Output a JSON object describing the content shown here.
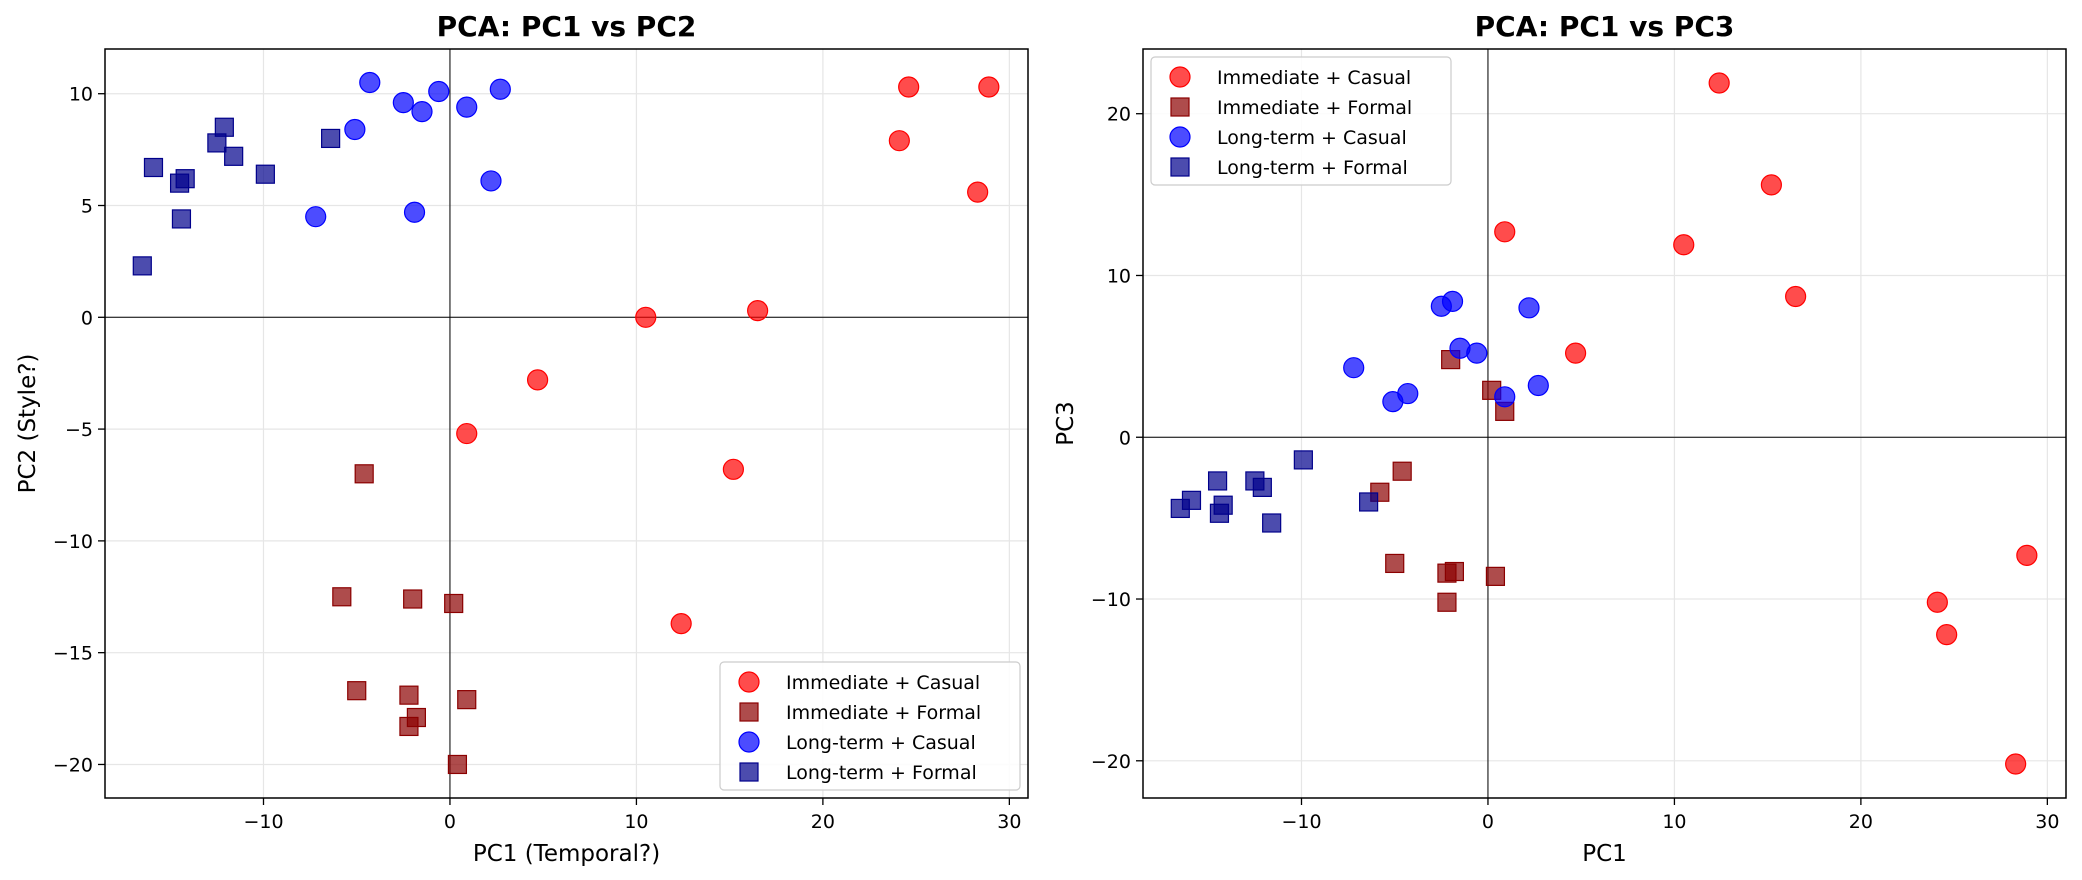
{
  "chart_data": [
    {
      "type": "scatter",
      "title": "PCA: PC1 vs PC2",
      "xlabel": "PC1 (Temporal?)",
      "ylabel": "PC2 (Style?)",
      "xlim": [
        -18.5,
        31
      ],
      "ylim": [
        -21.5,
        12
      ],
      "xticks": [
        -10,
        0,
        10,
        20,
        30
      ],
      "yticks": [
        -20,
        -15,
        -10,
        -5,
        0,
        5,
        10
      ],
      "xtick_labels": [
        "−10",
        "0",
        "10",
        "20",
        "30"
      ],
      "ytick_labels": [
        "−20",
        "−15",
        "−10",
        "−5",
        "0",
        "5",
        "10"
      ],
      "grid": true,
      "zero_lines": true,
      "legend_position": "lower-right",
      "series": [
        {
          "name": "Immediate + Casual",
          "marker": "circle",
          "color": "#ff0000",
          "points": [
            [
              24.6,
              10.3
            ],
            [
              28.9,
              10.3
            ],
            [
              24.1,
              7.9
            ],
            [
              28.3,
              5.6
            ],
            [
              10.5,
              0.0
            ],
            [
              16.5,
              0.3
            ],
            [
              4.7,
              -2.8
            ],
            [
              0.9,
              -5.2
            ],
            [
              15.2,
              -6.8
            ],
            [
              12.4,
              -13.7
            ]
          ]
        },
        {
          "name": "Immediate + Formal",
          "marker": "square",
          "color": "#8b0000",
          "points": [
            [
              -4.6,
              -7.0
            ],
            [
              -5.8,
              -12.5
            ],
            [
              -2.0,
              -12.6
            ],
            [
              0.2,
              -12.8
            ],
            [
              -5.0,
              -16.7
            ],
            [
              -2.2,
              -16.9
            ],
            [
              -1.8,
              -17.9
            ],
            [
              -2.2,
              -18.3
            ],
            [
              0.9,
              -17.1
            ],
            [
              0.4,
              -20.0
            ]
          ]
        },
        {
          "name": "Long-term + Casual",
          "marker": "circle",
          "color": "#0000ff",
          "points": [
            [
              -4.3,
              10.5
            ],
            [
              -2.5,
              9.6
            ],
            [
              -1.5,
              9.2
            ],
            [
              -0.6,
              10.1
            ],
            [
              0.9,
              9.4
            ],
            [
              2.7,
              10.2
            ],
            [
              -5.1,
              8.4
            ],
            [
              2.2,
              6.1
            ],
            [
              -7.2,
              4.5
            ],
            [
              -1.9,
              4.7
            ]
          ]
        },
        {
          "name": "Long-term + Formal",
          "marker": "square",
          "color": "#00008b",
          "points": [
            [
              -15.9,
              6.7
            ],
            [
              -14.5,
              6.0
            ],
            [
              -14.2,
              6.2
            ],
            [
              -12.5,
              7.8
            ],
            [
              -12.1,
              8.5
            ],
            [
              -11.6,
              7.2
            ],
            [
              -9.9,
              6.4
            ],
            [
              -6.4,
              8.0
            ],
            [
              -14.4,
              4.4
            ],
            [
              -16.5,
              2.3
            ]
          ]
        }
      ]
    },
    {
      "type": "scatter",
      "title": "PCA: PC1 vs PC3",
      "xlabel": "PC1",
      "ylabel": "PC3",
      "xlim": [
        -18.5,
        31
      ],
      "ylim": [
        -22.3,
        24
      ],
      "xticks": [
        -10,
        0,
        10,
        20,
        30
      ],
      "yticks": [
        -20,
        -10,
        0,
        10,
        20
      ],
      "xtick_labels": [
        "−10",
        "0",
        "10",
        "20",
        "30"
      ],
      "ytick_labels": [
        "−20",
        "−10",
        "0",
        "10",
        "20"
      ],
      "grid": true,
      "zero_lines": true,
      "legend_position": "upper-left",
      "series": [
        {
          "name": "Immediate + Casual",
          "marker": "circle",
          "color": "#ff0000",
          "points": [
            [
              12.4,
              21.9
            ],
            [
              15.2,
              15.6
            ],
            [
              0.9,
              12.7
            ],
            [
              10.5,
              11.9
            ],
            [
              16.5,
              8.7
            ],
            [
              4.7,
              5.2
            ],
            [
              24.1,
              -10.2
            ],
            [
              28.9,
              -7.3
            ],
            [
              24.6,
              -12.2
            ],
            [
              28.3,
              -20.2
            ]
          ]
        },
        {
          "name": "Immediate + Formal",
          "marker": "square",
          "color": "#8b0000",
          "points": [
            [
              -2.0,
              4.8
            ],
            [
              0.2,
              2.9
            ],
            [
              0.9,
              1.6
            ],
            [
              -5.8,
              -3.4
            ],
            [
              -4.6,
              -2.1
            ],
            [
              -5.0,
              -7.8
            ],
            [
              -2.2,
              -8.4
            ],
            [
              -1.8,
              -8.3
            ],
            [
              0.4,
              -8.6
            ],
            [
              -2.2,
              -10.2
            ]
          ]
        },
        {
          "name": "Long-term + Casual",
          "marker": "circle",
          "color": "#0000ff",
          "points": [
            [
              -2.5,
              8.1
            ],
            [
              -1.9,
              8.4
            ],
            [
              2.2,
              8.0
            ],
            [
              -1.5,
              5.5
            ],
            [
              -0.6,
              5.2
            ],
            [
              -7.2,
              4.3
            ],
            [
              -4.3,
              2.7
            ],
            [
              -5.1,
              2.2
            ],
            [
              0.9,
              2.5
            ],
            [
              2.7,
              3.2
            ]
          ]
        },
        {
          "name": "Long-term + Formal",
          "marker": "square",
          "color": "#00008b",
          "points": [
            [
              -9.9,
              -1.4
            ],
            [
              -12.5,
              -2.7
            ],
            [
              -14.5,
              -2.7
            ],
            [
              -12.1,
              -3.1
            ],
            [
              -6.4,
              -4.0
            ],
            [
              -15.9,
              -3.9
            ],
            [
              -16.5,
              -4.4
            ],
            [
              -14.2,
              -4.2
            ],
            [
              -14.4,
              -4.7
            ],
            [
              -11.6,
              -5.3
            ]
          ]
        }
      ]
    }
  ]
}
